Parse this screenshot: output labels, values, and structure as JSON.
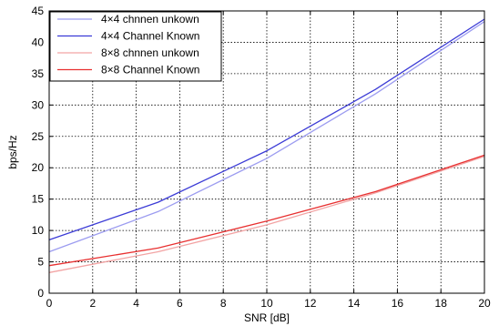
{
  "chart_data": {
    "type": "line",
    "xlabel": "SNR  [dB]",
    "ylabel": "bps/Hz",
    "xlim": [
      0,
      20
    ],
    "ylim": [
      0,
      45
    ],
    "xticks": [
      0,
      2,
      4,
      6,
      8,
      10,
      12,
      14,
      16,
      18,
      20
    ],
    "yticks": [
      0,
      5,
      10,
      15,
      20,
      25,
      30,
      35,
      40,
      45
    ],
    "xtick_labels": [
      "0",
      "2",
      "4",
      "6",
      "8",
      "10",
      "12",
      "14",
      "16",
      "18",
      "20"
    ],
    "ytick_labels": [
      "0",
      "5",
      "10",
      "15",
      "20",
      "25",
      "30",
      "35",
      "40",
      "45"
    ],
    "grid": "dotted",
    "legend_position": "top-left",
    "x": [
      0,
      5,
      10,
      15,
      20
    ],
    "series": [
      {
        "name": "4×4  chnnen  unkown",
        "color": "#9c9cf0",
        "values": [
          6.6,
          13.0,
          21.5,
          31.8,
          43.3
        ]
      },
      {
        "name": "4×4  Channel  Known",
        "color": "#3b3bd6",
        "values": [
          8.5,
          14.5,
          22.7,
          32.5,
          43.7
        ]
      },
      {
        "name": "8×8  chnnen  unkown",
        "color": "#f2a3a3",
        "values": [
          3.3,
          6.6,
          10.9,
          16.0,
          21.8
        ]
      },
      {
        "name": "8×8  Channel  Known",
        "color": "#e83030",
        "values": [
          4.4,
          7.2,
          11.5,
          16.2,
          22.0
        ]
      }
    ]
  }
}
